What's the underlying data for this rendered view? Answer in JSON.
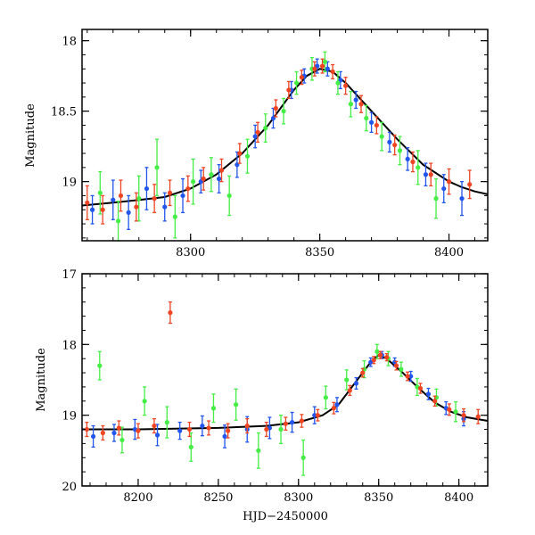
{
  "chart_data": [
    {
      "type": "scatter",
      "panel": "top",
      "title": "",
      "xlabel": "",
      "ylabel": "Magnitude",
      "xlim": [
        8258,
        8415
      ],
      "ylim": [
        19.42,
        17.92
      ],
      "y_inverted": true,
      "grid": false,
      "legend": "none",
      "x_ticks": [
        8300,
        8350,
        8400
      ],
      "x_tick_labels": [
        "8300",
        "8350",
        "8400"
      ],
      "y_ticks": [
        18,
        18.5,
        19
      ],
      "y_tick_labels": [
        "18",
        "18.5",
        "19"
      ],
      "model_curve": {
        "color": "#000000",
        "x": [
          8258,
          8270,
          8280,
          8290,
          8300,
          8310,
          8320,
          8330,
          8340,
          8345,
          8350,
          8355,
          8360,
          8370,
          8380,
          8390,
          8400,
          8405,
          8410,
          8415
        ],
        "y": [
          19.17,
          19.15,
          19.13,
          19.11,
          19.05,
          18.95,
          18.8,
          18.6,
          18.35,
          18.25,
          18.2,
          18.22,
          18.3,
          18.5,
          18.7,
          18.88,
          19.0,
          19.04,
          19.07,
          19.09
        ]
      },
      "series": [
        {
          "name": "",
          "color": "#2255ee",
          "x": [
            8262,
            8270,
            8276,
            8283,
            8290,
            8297,
            8304,
            8311,
            8318,
            8325,
            8332,
            8339,
            8344,
            8349,
            8353,
            8358,
            8364,
            8370,
            8377,
            8384,
            8391,
            8398,
            8405
          ],
          "y": [
            19.2,
            19.13,
            19.22,
            19.05,
            19.18,
            19.1,
            19.0,
            18.98,
            18.88,
            18.68,
            18.55,
            18.35,
            18.25,
            18.18,
            18.2,
            18.28,
            18.42,
            18.58,
            18.72,
            18.84,
            18.95,
            19.05,
            19.12
          ],
          "err": [
            0.1,
            0.14,
            0.12,
            0.15,
            0.1,
            0.12,
            0.08,
            0.1,
            0.09,
            0.08,
            0.07,
            0.06,
            0.05,
            0.05,
            0.05,
            0.06,
            0.06,
            0.07,
            0.07,
            0.08,
            0.08,
            0.1,
            0.12
          ]
        },
        {
          "name": "",
          "color": "#44ee44",
          "x": [
            8265,
            8272,
            8280,
            8287,
            8294,
            8301,
            8308,
            8315,
            8322,
            8329,
            8336,
            8341,
            8347,
            8352,
            8357,
            8362,
            8368,
            8374,
            8381,
            8388,
            8395
          ],
          "y": [
            19.08,
            19.28,
            19.12,
            18.9,
            19.25,
            19.0,
            18.95,
            19.1,
            18.82,
            18.62,
            18.5,
            18.3,
            18.2,
            18.15,
            18.3,
            18.45,
            18.55,
            18.68,
            18.78,
            18.9,
            19.12
          ],
          "err": [
            0.15,
            0.14,
            0.16,
            0.2,
            0.15,
            0.16,
            0.12,
            0.14,
            0.12,
            0.1,
            0.09,
            0.08,
            0.08,
            0.07,
            0.08,
            0.09,
            0.09,
            0.1,
            0.1,
            0.12,
            0.14
          ]
        },
        {
          "name": "",
          "color": "#ee4422",
          "x": [
            8260,
            8266,
            8273,
            8279,
            8286,
            8292,
            8299,
            8305,
            8312,
            8319,
            8326,
            8333,
            8338,
            8343,
            8348,
            8351,
            8355,
            8360,
            8366,
            8372,
            8379,
            8386,
            8393,
            8400,
            8408
          ],
          "y": [
            19.15,
            19.2,
            19.1,
            19.18,
            19.12,
            19.08,
            19.05,
            18.98,
            18.92,
            18.8,
            18.65,
            18.48,
            18.35,
            18.26,
            18.2,
            18.18,
            18.22,
            18.32,
            18.45,
            18.6,
            18.74,
            18.86,
            18.95,
            19.0,
            19.02
          ],
          "err": [
            0.12,
            0.1,
            0.11,
            0.1,
            0.1,
            0.09,
            0.09,
            0.08,
            0.08,
            0.07,
            0.07,
            0.06,
            0.06,
            0.05,
            0.05,
            0.05,
            0.05,
            0.06,
            0.06,
            0.06,
            0.07,
            0.07,
            0.08,
            0.09,
            0.1
          ]
        }
      ]
    },
    {
      "type": "scatter",
      "panel": "bottom",
      "title": "",
      "xlabel": "HJD−2450000",
      "ylabel": "Magnitude",
      "xlim": [
        8165,
        8418
      ],
      "ylim": [
        20,
        17
      ],
      "y_inverted": true,
      "grid": false,
      "legend": "none",
      "x_ticks": [
        8200,
        8250,
        8300,
        8350,
        8400
      ],
      "x_tick_labels": [
        "8200",
        "8250",
        "8300",
        "8350",
        "8400"
      ],
      "y_ticks": [
        17,
        18,
        19,
        20
      ],
      "y_tick_labels": [
        "17",
        "18",
        "19",
        "20"
      ],
      "model_curve": {
        "color": "#000000",
        "x": [
          8165,
          8200,
          8250,
          8280,
          8300,
          8315,
          8325,
          8335,
          8345,
          8350,
          8355,
          8365,
          8375,
          8385,
          8395,
          8405,
          8418
        ],
        "y": [
          19.2,
          19.2,
          19.18,
          19.15,
          19.1,
          19.0,
          18.85,
          18.55,
          18.25,
          18.15,
          18.2,
          18.4,
          18.62,
          18.82,
          18.95,
          19.03,
          19.08
        ]
      },
      "series": [
        {
          "name": "",
          "color": "#2255ee",
          "x": [
            8172,
            8185,
            8198,
            8212,
            8226,
            8240,
            8254,
            8268,
            8282,
            8296,
            8310,
            8324,
            8336,
            8345,
            8352,
            8360,
            8370,
            8381,
            8392,
            8403
          ],
          "y": [
            19.3,
            19.25,
            19.2,
            19.28,
            19.22,
            19.15,
            19.3,
            19.2,
            19.18,
            19.1,
            19.0,
            18.85,
            18.55,
            18.25,
            18.15,
            18.25,
            18.45,
            18.7,
            18.9,
            19.05
          ],
          "err": [
            0.15,
            0.12,
            0.14,
            0.15,
            0.12,
            0.14,
            0.16,
            0.18,
            0.15,
            0.14,
            0.12,
            0.1,
            0.08,
            0.06,
            0.05,
            0.06,
            0.07,
            0.08,
            0.09,
            0.1
          ]
        },
        {
          "name": "",
          "color": "#44ee44",
          "x": [
            8176,
            8190,
            8204,
            8218,
            8233,
            8247,
            8261,
            8275,
            8289,
            8303,
            8317,
            8330,
            8341,
            8349,
            8356,
            8364,
            8374,
            8386,
            8398
          ],
          "y": [
            18.3,
            19.35,
            18.8,
            19.1,
            19.45,
            18.9,
            18.85,
            19.5,
            19.2,
            19.6,
            18.75,
            18.5,
            18.35,
            18.1,
            18.2,
            18.35,
            18.6,
            18.75,
            18.95
          ],
          "err": [
            0.2,
            0.18,
            0.2,
            0.22,
            0.2,
            0.2,
            0.22,
            0.25,
            0.2,
            0.25,
            0.16,
            0.14,
            0.12,
            0.1,
            0.1,
            0.1,
            0.12,
            0.12,
            0.14
          ]
        },
        {
          "name": "",
          "color": "#ee4422",
          "x": [
            8168,
            8178,
            8188,
            8200,
            8210,
            8220,
            8232,
            8244,
            8256,
            8268,
            8280,
            8292,
            8302,
            8312,
            8322,
            8332,
            8340,
            8347,
            8351,
            8355,
            8361,
            8368,
            8376,
            8385,
            8394,
            8403,
            8412
          ],
          "y": [
            19.2,
            19.25,
            19.18,
            19.22,
            19.15,
            17.55,
            19.2,
            19.18,
            19.22,
            19.15,
            19.2,
            19.12,
            19.08,
            19.0,
            18.9,
            18.65,
            18.4,
            18.22,
            18.15,
            18.18,
            18.3,
            18.45,
            18.62,
            18.8,
            18.92,
            19.0,
            19.02
          ],
          "err": [
            0.1,
            0.1,
            0.1,
            0.1,
            0.1,
            0.15,
            0.1,
            0.1,
            0.1,
            0.1,
            0.1,
            0.09,
            0.09,
            0.08,
            0.08,
            0.07,
            0.06,
            0.05,
            0.05,
            0.05,
            0.06,
            0.06,
            0.07,
            0.07,
            0.08,
            0.09,
            0.1
          ]
        }
      ]
    }
  ]
}
